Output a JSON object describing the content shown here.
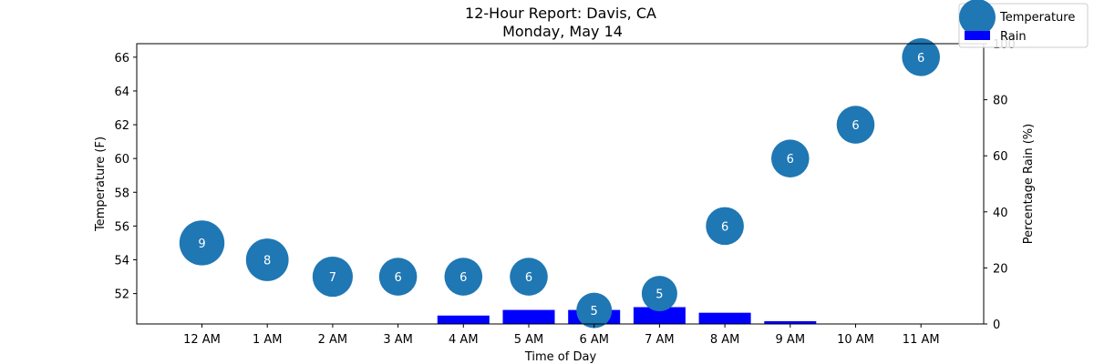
{
  "chart_data": {
    "type": "scatter",
    "title": "12-Hour Report: Davis, CA",
    "subtitle": "Monday, May 14",
    "xlabel": "Time of Day",
    "ylabel": "Temperature (F)",
    "y2label": "Percentage Rain (%)",
    "categories": [
      "12 AM",
      "1 AM",
      "2 AM",
      "3 AM",
      "4 AM",
      "5 AM",
      "6 AM",
      "7 AM",
      "8 AM",
      "9 AM",
      "10 AM",
      "11 AM"
    ],
    "ylim": [
      50.2,
      66.8
    ],
    "y_ticks": [
      52,
      54,
      56,
      58,
      60,
      62,
      64,
      66
    ],
    "y2lim": [
      0,
      100
    ],
    "y2_ticks": [
      0,
      20,
      40,
      60,
      80,
      100
    ],
    "legend_position": "top-right",
    "grid": false,
    "series": [
      {
        "name": "Temperature",
        "kind": "bubble",
        "color": "#1f77b4",
        "label_color": "#ffffff",
        "values": [
          55,
          54,
          53,
          53,
          53,
          53,
          51,
          52,
          56,
          60,
          62,
          66
        ],
        "labels": [
          "9",
          "8",
          "7",
          "6",
          "6",
          "6",
          "5",
          "5",
          "6",
          "6",
          "6",
          "6"
        ]
      },
      {
        "name": "Rain",
        "kind": "bar",
        "axis": "right",
        "color": "#0000ff",
        "values": [
          0,
          0,
          0,
          0,
          3,
          5,
          5,
          6,
          4,
          1,
          0,
          0
        ]
      }
    ]
  }
}
